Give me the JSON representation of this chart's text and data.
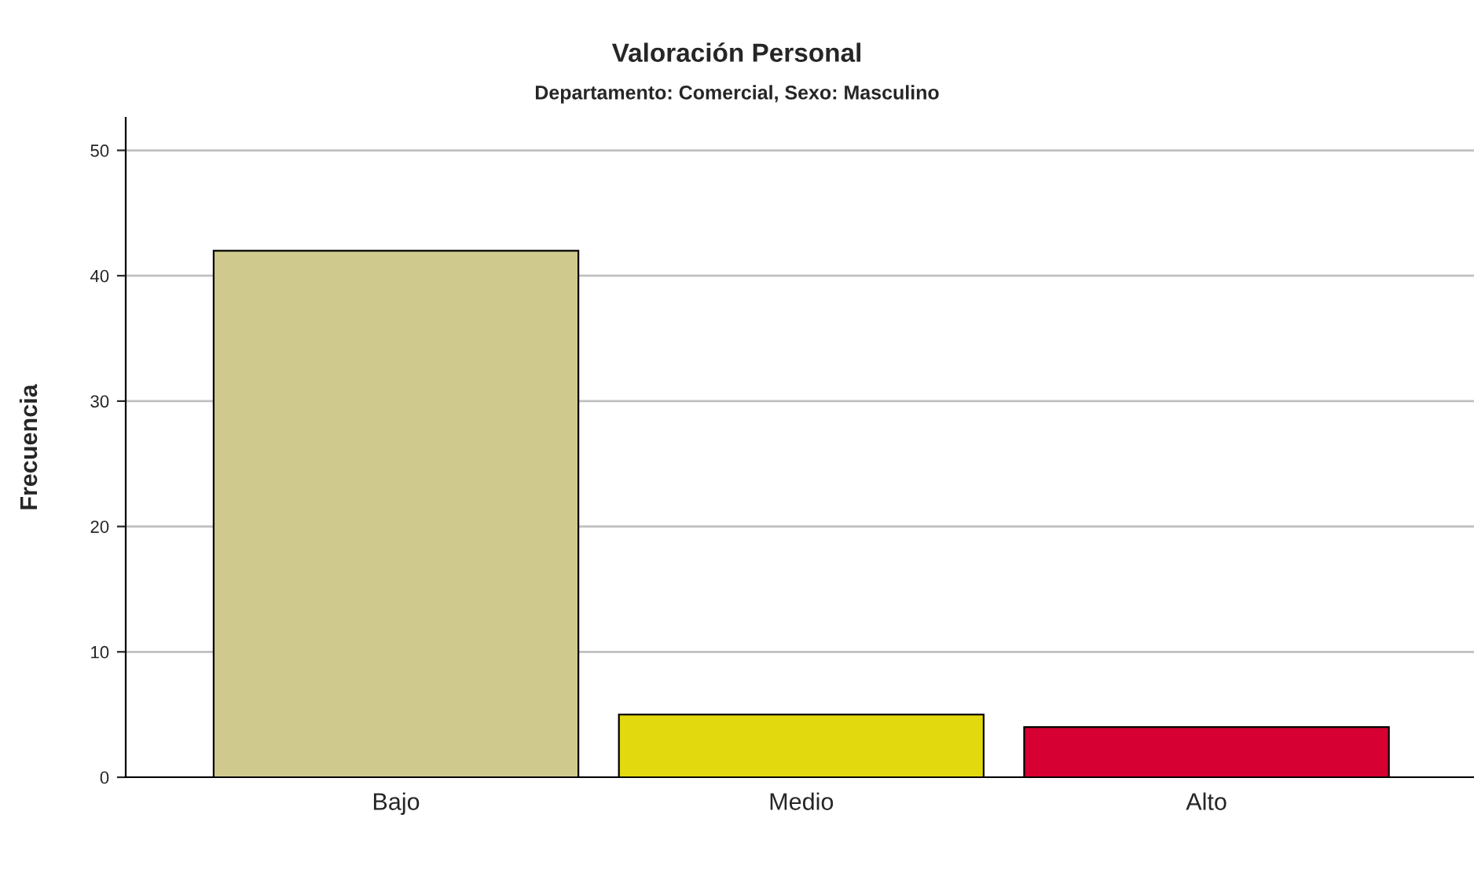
{
  "chart_data": {
    "type": "bar",
    "title": "Valoración Personal",
    "subtitle": "Departamento: Comercial, Sexo: Masculino",
    "ylabel": "Frecuencia",
    "categories": [
      "Bajo",
      "Medio",
      "Alto"
    ],
    "values": [
      42,
      5,
      4
    ],
    "colors": [
      "#cfc98e",
      "#e3d90f",
      "#d60032"
    ],
    "ylim": [
      0,
      52.6
    ],
    "yticks": [
      0,
      10,
      20,
      30,
      40,
      50
    ],
    "grid": "y"
  }
}
